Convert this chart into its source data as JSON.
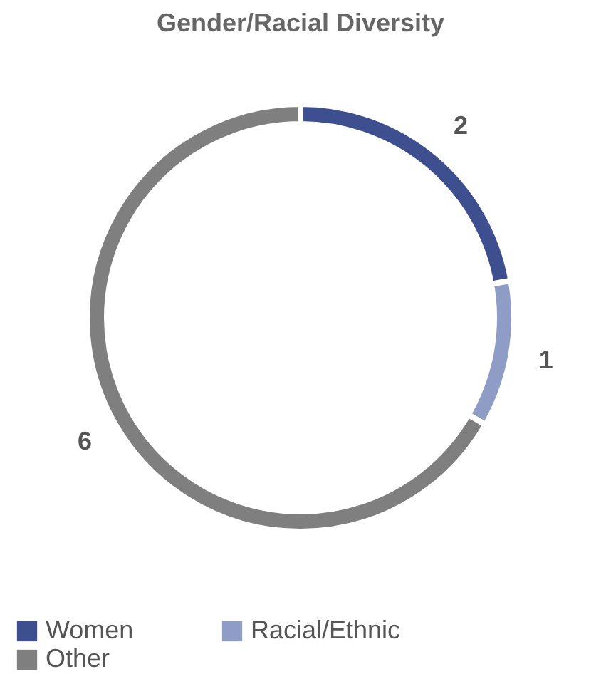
{
  "chart_data": {
    "type": "donut",
    "title": "Gender/Racial Diversity",
    "categories": [
      "Women",
      "Racial/Ethnic",
      "Other"
    ],
    "values": [
      2,
      1,
      6
    ],
    "colors": [
      "#3d4f8f",
      "#8e9cc6",
      "#7f7f7f"
    ],
    "data_labels": true,
    "legend": "bottom"
  }
}
